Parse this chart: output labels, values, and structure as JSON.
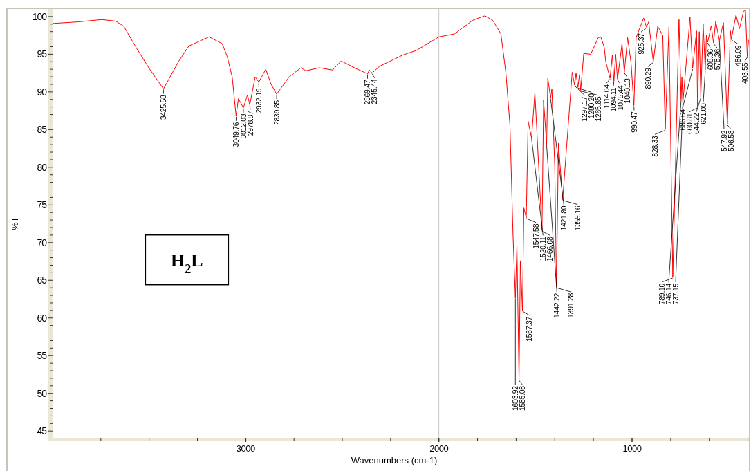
{
  "chart_data": {
    "type": "line",
    "xlabel": "Wavenumbers (cm-1)",
    "ylabel": "%T",
    "xlim": [
      4000,
      395
    ],
    "ylim": [
      44.1,
      101
    ],
    "xticks": [
      {
        "value": 3750,
        "label": null
      },
      {
        "value": 3500,
        "label": null
      },
      {
        "value": 3250,
        "label": null
      },
      3000,
      {
        "value": 2750,
        "label": null
      },
      {
        "value": 2500,
        "label": null
      },
      {
        "value": 2250,
        "label": null
      },
      2000,
      {
        "value": 1800,
        "label": null
      },
      {
        "value": 1600,
        "label": null
      },
      {
        "value": 1400,
        "label": null
      },
      {
        "value": 1200,
        "label": null
      },
      1000,
      {
        "value": 800,
        "label": null
      },
      {
        "value": 600,
        "label": null
      },
      {
        "value": 400,
        "label": null
      }
    ],
    "yticks": [
      45,
      {
        "value": 46,
        "label": null
      },
      {
        "value": 47,
        "label": null
      },
      {
        "value": 48,
        "label": null
      },
      {
        "value": 49,
        "label": null
      },
      50,
      {
        "value": 51,
        "label": null
      },
      {
        "value": 52,
        "label": null
      },
      {
        "value": 53,
        "label": null
      },
      {
        "value": 54,
        "label": null
      },
      55,
      {
        "value": 56,
        "label": null
      },
      {
        "value": 57,
        "label": null
      },
      {
        "value": 58,
        "label": null
      },
      {
        "value": 59,
        "label": null
      },
      60,
      {
        "value": 61,
        "label": null
      },
      {
        "value": 62,
        "label": null
      },
      {
        "value": 63,
        "label": null
      },
      {
        "value": 64,
        "label": null
      },
      65,
      {
        "value": 66,
        "label": null
      },
      {
        "value": 67,
        "label": null
      },
      {
        "value": 68,
        "label": null
      },
      {
        "value": 69,
        "label": null
      },
      70,
      {
        "value": 71,
        "label": null
      },
      {
        "value": 72,
        "label": null
      },
      {
        "value": 73,
        "label": null
      },
      {
        "value": 74,
        "label": null
      },
      75,
      {
        "value": 76,
        "label": null
      },
      {
        "value": 77,
        "label": null
      },
      {
        "value": 78,
        "label": null
      },
      {
        "value": 79,
        "label": null
      },
      80,
      {
        "value": 81,
        "label": null
      },
      {
        "value": 82,
        "label": null
      },
      {
        "value": 83,
        "label": null
      },
      {
        "value": 84,
        "label": null
      },
      85,
      {
        "value": 86,
        "label": null
      },
      {
        "value": 87,
        "label": null
      },
      {
        "value": 88,
        "label": null
      },
      {
        "value": 89,
        "label": null
      },
      90,
      {
        "value": 91,
        "label": null
      },
      {
        "value": 92,
        "label": null
      },
      {
        "value": 93,
        "label": null
      },
      {
        "value": 94,
        "label": null
      },
      95,
      {
        "value": 96,
        "label": null
      },
      {
        "value": 97,
        "label": null
      },
      {
        "value": 98,
        "label": null
      },
      {
        "value": 99,
        "label": null
      },
      100
    ],
    "ref_lines": [
      {
        "axis": "x",
        "value": 2000,
        "color": "#c8c8c8"
      }
    ],
    "x": [
      4000,
      3990,
      3865,
      3745,
      3673,
      3631,
      3570,
      3502,
      3425.58,
      3346,
      3294,
      3190,
      3122,
      3096,
      3070,
      3049.76,
      3038,
      3012.03,
      2991,
      2978.87,
      2951,
      2932.19,
      2896,
      2870,
      2839.85,
      2775,
      2714,
      2688,
      2619,
      2550,
      2506,
      2429,
      2369.47,
      2360,
      2345.44,
      2307,
      2186,
      2117,
      2000,
      1919,
      1825,
      1762,
      1721,
      1679,
      1653,
      1632,
      1616,
      1603.92,
      1596,
      1585.08,
      1578,
      1567.37,
      1560,
      1547.58,
      1538,
      1520.11,
      1503,
      1466.08,
      1458,
      1442.22,
      1436,
      1421.8,
      1415,
      1400,
      1391.28,
      1381,
      1359.16,
      1310,
      1297.17,
      1290,
      1280.2,
      1272,
      1265.85,
      1250,
      1214,
      1175,
      1162,
      1144,
      1136,
      1114.04,
      1102,
      1094.11,
      1085,
      1075.44,
      1052,
      1040.13,
      1023,
      1005,
      990.47,
      979,
      940,
      925.37,
      914,
      890.29,
      867,
      841,
      828.33,
      809,
      789.1,
      757,
      746.14,
      742,
      737.15,
      700,
      686.64,
      666,
      660.81,
      652,
      644.22,
      632,
      621.0,
      615,
      608.36,
      590,
      578.36,
      567,
      547.92,
      527,
      506.58,
      491,
      486.09,
      462,
      444,
      423,
      413,
      403.55,
      397
    ],
    "series": [
      {
        "color": "#ff0000",
        "values": [
          99.1,
          99.1,
          99.3,
          99.6,
          99.4,
          98.7,
          96.0,
          93.2,
          90.4,
          94.1,
          96.1,
          97.3,
          96.4,
          94.7,
          92.0,
          86.8,
          89.1,
          87.9,
          89.6,
          88.3,
          92.0,
          91.3,
          93.0,
          91.1,
          89.7,
          92.0,
          93.2,
          92.8,
          93.2,
          92.9,
          94.1,
          93.1,
          92.4,
          92.9,
          92.5,
          93.4,
          94.9,
          95.5,
          97.3,
          97.7,
          99.5,
          100.1,
          99.5,
          97.7,
          92.5,
          85.6,
          70.9,
          62.6,
          69.8,
          51.8,
          67.6,
          61.0,
          74.6,
          73.3,
          86.1,
          83.9,
          89.9,
          71.6,
          88.9,
          83.0,
          91.8,
          89.2,
          90.4,
          80.0,
          64.1,
          83.2,
          75.7,
          92.6,
          90.9,
          92.5,
          90.6,
          92.3,
          90.2,
          95.1,
          95.0,
          97.2,
          97.3,
          95.9,
          94.0,
          91.8,
          94.9,
          91.4,
          95.0,
          91.7,
          96.4,
          92.6,
          97.2,
          93.8,
          88.2,
          97.2,
          99.8,
          98.6,
          99.3,
          94.0,
          98.7,
          97.5,
          85.0,
          98.6,
          65.4,
          99.6,
          89.0,
          92.0,
          88.5,
          99.9,
          93.1,
          98.1,
          88.0,
          98.0,
          89.3,
          99.0,
          92.9,
          97.5,
          96.6,
          98.8,
          96.5,
          99.4,
          96.8,
          99.2,
          85.7,
          98.1,
          97.0,
          100.2,
          98.4,
          100.7,
          100.8,
          94.7,
          96.9
        ]
      }
    ],
    "annotations": [
      "H$_{2}$L",
      {
        "text": "3425.58",
        "x": 3425.58,
        "y": 90.4
      },
      {
        "text": "3049.76",
        "x": 3049.76,
        "y": 86.8
      },
      {
        "text": "3012.03",
        "x": 3012.03,
        "y": 87.9
      },
      {
        "text": "2978.87",
        "x": 2978.87,
        "y": 88.3
      },
      {
        "text": "2932.19",
        "x": 2932.19,
        "y": 91.3
      },
      {
        "text": "2839.85",
        "x": 2839.85,
        "y": 89.7
      },
      {
        "text": "2369.47",
        "x": 2369.47,
        "y": 92.4
      },
      {
        "text": "2345.44",
        "x": 2345.44,
        "y": 92.5
      },
      {
        "text": "1603.92",
        "x": 1603.92,
        "y": 62.6
      },
      {
        "text": "1585.08",
        "x": 1585.08,
        "y": 51.8
      },
      {
        "text": "1567.37",
        "x": 1567.37,
        "y": 61.0
      },
      {
        "text": "1547.58",
        "x": 1547.58,
        "y": 73.3
      },
      {
        "text": "1520.11",
        "x": 1520.11,
        "y": 83.9
      },
      {
        "text": "1466.08",
        "x": 1466.08,
        "y": 71.6
      },
      {
        "text": "1442.22",
        "x": 1442.22,
        "y": 83.0
      },
      {
        "text": "1421.80",
        "x": 1421.8,
        "y": 89.2
      },
      {
        "text": "1391.28",
        "x": 1391.28,
        "y": 64.1
      },
      {
        "text": "1359.16",
        "x": 1359.16,
        "y": 75.7
      },
      {
        "text": "1297.17",
        "x": 1297.17,
        "y": 90.9
      },
      {
        "text": "1280.20",
        "x": 1280.2,
        "y": 90.6
      },
      {
        "text": "1265.85",
        "x": 1265.85,
        "y": 90.2
      },
      {
        "text": "1114.04",
        "x": 1114.04,
        "y": 91.8
      },
      {
        "text": "1094.11",
        "x": 1094.11,
        "y": 91.4
      },
      {
        "text": "1075.44",
        "x": 1075.44,
        "y": 91.7
      },
      {
        "text": "1040.13",
        "x": 1040.13,
        "y": 92.6
      },
      {
        "text": "990.47",
        "x": 990.47,
        "y": 88.2
      },
      {
        "text": "925.37",
        "x": 925.37,
        "y": 98.6
      },
      {
        "text": "890.29",
        "x": 890.29,
        "y": 94.0
      },
      {
        "text": "828.33",
        "x": 828.33,
        "y": 85.0
      },
      {
        "text": "789.10",
        "x": 789.1,
        "y": 65.4
      },
      {
        "text": "746.14",
        "x": 746.14,
        "y": 89.0
      },
      {
        "text": "737.15",
        "x": 737.15,
        "y": 88.5
      },
      {
        "text": "686.64",
        "x": 686.64,
        "y": 93.1
      },
      {
        "text": "660.81",
        "x": 660.81,
        "y": 88.0
      },
      {
        "text": "644.22",
        "x": 644.22,
        "y": 89.3
      },
      {
        "text": "621.00",
        "x": 621.0,
        "y": 92.9
      },
      {
        "text": "608.36",
        "x": 608.36,
        "y": 96.6
      },
      {
        "text": "578.36",
        "x": 578.36,
        "y": 96.5
      },
      {
        "text": "547.92",
        "x": 547.92,
        "y": 96.8
      },
      {
        "text": "506.58",
        "x": 506.58,
        "y": 85.7
      },
      {
        "text": "486.09",
        "x": 486.09,
        "y": 97.0
      },
      {
        "text": "403.55",
        "x": 403.55,
        "y": 94.7
      }
    ]
  }
}
